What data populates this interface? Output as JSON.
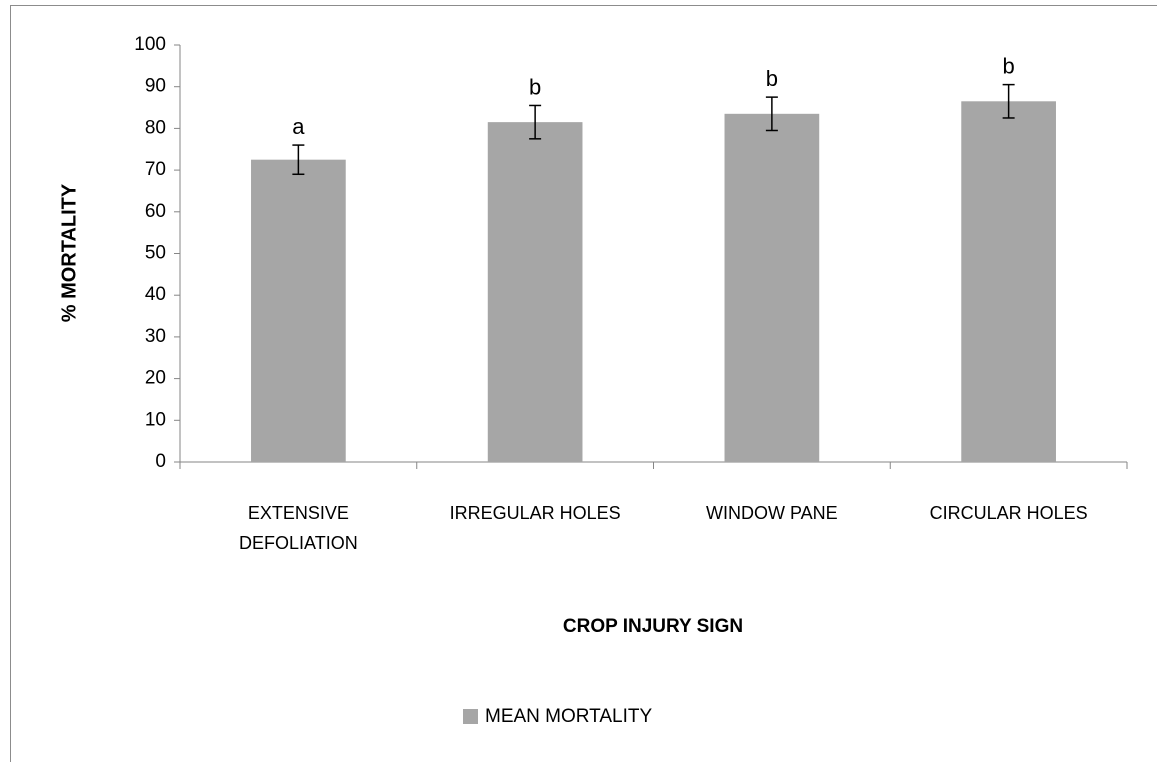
{
  "chart_data": {
    "type": "bar",
    "x_label": "CROP INJURY SIGN",
    "y_label": "% MORTALITY",
    "categories": [
      "EXTENSIVE\nDEFOLIATION",
      "IRREGULAR HOLES",
      "WINDOW PANE",
      "CIRCULAR HOLES"
    ],
    "series": [
      {
        "name": "MEAN MORTALITY",
        "color": "#a6a6a6",
        "values": [
          72.5,
          81.5,
          83.5,
          86.5
        ],
        "errors": [
          3.5,
          4,
          4,
          4
        ]
      }
    ],
    "significance_labels": [
      "a",
      "b",
      "b",
      "b"
    ],
    "ylim": [
      0,
      100
    ],
    "yticks": [
      0,
      10,
      20,
      30,
      40,
      50,
      60,
      70,
      80,
      90,
      100
    ],
    "legend": "bottom"
  }
}
